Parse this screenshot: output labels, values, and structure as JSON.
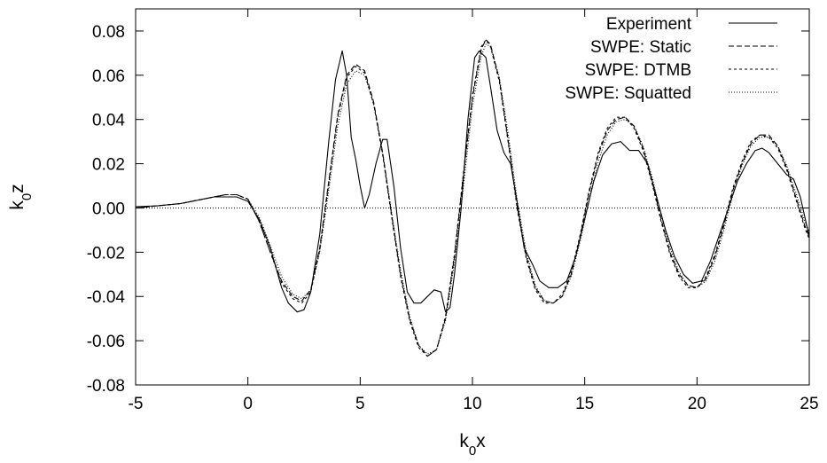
{
  "chart_data": {
    "type": "line",
    "xlabel": "k0x",
    "ylabel": "k0z",
    "xlabel_main": "k",
    "xlabel_sub": "0",
    "xlabel_rest": "x",
    "ylabel_main": "k",
    "ylabel_sub": "0",
    "ylabel_rest": "z",
    "xlim": [
      -5,
      25
    ],
    "ylim": [
      -0.08,
      0.09
    ],
    "xticks": [
      -5,
      0,
      5,
      10,
      15,
      20,
      25
    ],
    "yticks": [
      -0.08,
      -0.06,
      -0.04,
      -0.02,
      0.0,
      0.02,
      0.04,
      0.06,
      0.08
    ],
    "xtick_labels": [
      "-5",
      "0",
      "5",
      "10",
      "15",
      "20",
      "25"
    ],
    "ytick_labels": [
      "-0.08",
      "-0.06",
      "-0.04",
      "-0.02",
      "0.00",
      "0.02",
      "0.04",
      "0.06",
      "0.08"
    ],
    "grid": false,
    "legend_position": "top-right",
    "zero_line": {
      "y": 0,
      "style": "dotted"
    },
    "series": [
      {
        "name": "Experiment",
        "style": "solid",
        "points": [
          [
            -5,
            0.0006
          ],
          [
            -4,
            0.001
          ],
          [
            -3,
            0.002
          ],
          [
            -2.5,
            0.003
          ],
          [
            -2,
            0.004
          ],
          [
            -1.5,
            0.005
          ],
          [
            -1,
            0.005
          ],
          [
            -0.5,
            0.005
          ],
          [
            0,
            0.003
          ],
          [
            0.5,
            -0.005
          ],
          [
            1,
            -0.018
          ],
          [
            1.5,
            -0.036
          ],
          [
            1.8,
            -0.043
          ],
          [
            2.2,
            -0.047
          ],
          [
            2.5,
            -0.046
          ],
          [
            2.8,
            -0.038
          ],
          [
            3.2,
            -0.012
          ],
          [
            3.6,
            0.03
          ],
          [
            3.9,
            0.058
          ],
          [
            4.2,
            0.071
          ],
          [
            4.4,
            0.06
          ],
          [
            4.6,
            0.032
          ],
          [
            4.8,
            0.022
          ],
          [
            5.0,
            0.01
          ],
          [
            5.2,
            0.0
          ],
          [
            5.4,
            0.006
          ],
          [
            5.7,
            0.02
          ],
          [
            6.0,
            0.031
          ],
          [
            6.2,
            0.031
          ],
          [
            6.5,
            0.01
          ],
          [
            6.8,
            -0.018
          ],
          [
            7.1,
            -0.038
          ],
          [
            7.4,
            -0.043
          ],
          [
            7.7,
            -0.043
          ],
          [
            8.0,
            -0.04
          ],
          [
            8.3,
            -0.037
          ],
          [
            8.6,
            -0.038
          ],
          [
            8.8,
            -0.047
          ],
          [
            9.0,
            -0.045
          ],
          [
            9.2,
            -0.03
          ],
          [
            9.5,
            0.0
          ],
          [
            9.8,
            0.04
          ],
          [
            10.1,
            0.068
          ],
          [
            10.3,
            0.071
          ],
          [
            10.6,
            0.068
          ],
          [
            10.8,
            0.055
          ],
          [
            11.1,
            0.035
          ],
          [
            11.4,
            0.025
          ],
          [
            11.7,
            0.02
          ],
          [
            12.0,
            0.002
          ],
          [
            12.3,
            -0.018
          ],
          [
            12.7,
            -0.026
          ],
          [
            13.0,
            -0.033
          ],
          [
            13.4,
            -0.036
          ],
          [
            13.8,
            -0.036
          ],
          [
            14.2,
            -0.033
          ],
          [
            14.6,
            -0.022
          ],
          [
            15.0,
            -0.005
          ],
          [
            15.4,
            0.012
          ],
          [
            15.8,
            0.024
          ],
          [
            16.2,
            0.029
          ],
          [
            16.6,
            0.03
          ],
          [
            17.0,
            0.026
          ],
          [
            17.4,
            0.026
          ],
          [
            17.8,
            0.02
          ],
          [
            18.2,
            0.005
          ],
          [
            18.6,
            -0.01
          ],
          [
            19.0,
            -0.022
          ],
          [
            19.4,
            -0.03
          ],
          [
            19.8,
            -0.034
          ],
          [
            20.2,
            -0.033
          ],
          [
            20.6,
            -0.024
          ],
          [
            21.0,
            -0.012
          ],
          [
            21.4,
            0.0
          ],
          [
            21.8,
            0.012
          ],
          [
            22.2,
            0.02
          ],
          [
            22.6,
            0.026
          ],
          [
            22.9,
            0.027
          ],
          [
            23.2,
            0.025
          ],
          [
            23.6,
            0.02
          ],
          [
            24.0,
            0.015
          ],
          [
            24.3,
            0.013
          ],
          [
            24.6,
            0.005
          ],
          [
            25,
            -0.013
          ]
        ]
      },
      {
        "name": "SWPE: Static",
        "style": "dashed",
        "points": [
          [
            -5,
            0.0
          ],
          [
            -4,
            0.001
          ],
          [
            -3,
            0.002
          ],
          [
            -2,
            0.004
          ],
          [
            -1,
            0.006
          ],
          [
            -0.5,
            0.006
          ],
          [
            0,
            0.004
          ],
          [
            0.5,
            -0.006
          ],
          [
            1,
            -0.02
          ],
          [
            1.5,
            -0.033
          ],
          [
            2,
            -0.04
          ],
          [
            2.4,
            -0.042
          ],
          [
            2.8,
            -0.037
          ],
          [
            3.2,
            -0.018
          ],
          [
            3.6,
            0.012
          ],
          [
            4.0,
            0.042
          ],
          [
            4.4,
            0.06
          ],
          [
            4.8,
            0.065
          ],
          [
            5.2,
            0.062
          ],
          [
            5.6,
            0.048
          ],
          [
            6.0,
            0.025
          ],
          [
            6.4,
            -0.003
          ],
          [
            6.8,
            -0.03
          ],
          [
            7.2,
            -0.05
          ],
          [
            7.6,
            -0.062
          ],
          [
            8.0,
            -0.067
          ],
          [
            8.4,
            -0.064
          ],
          [
            8.8,
            -0.05
          ],
          [
            9.2,
            -0.022
          ],
          [
            9.6,
            0.015
          ],
          [
            10.0,
            0.05
          ],
          [
            10.4,
            0.072
          ],
          [
            10.6,
            0.076
          ],
          [
            10.8,
            0.074
          ],
          [
            11.2,
            0.058
          ],
          [
            11.6,
            0.03
          ],
          [
            12.0,
            0.0
          ],
          [
            12.4,
            -0.022
          ],
          [
            12.8,
            -0.036
          ],
          [
            13.2,
            -0.042
          ],
          [
            13.6,
            -0.043
          ],
          [
            14.0,
            -0.04
          ],
          [
            14.4,
            -0.03
          ],
          [
            14.8,
            -0.013
          ],
          [
            15.2,
            0.007
          ],
          [
            15.6,
            0.024
          ],
          [
            16.0,
            0.035
          ],
          [
            16.4,
            0.04
          ],
          [
            16.8,
            0.041
          ],
          [
            17.2,
            0.037
          ],
          [
            17.6,
            0.027
          ],
          [
            18.0,
            0.012
          ],
          [
            18.4,
            -0.005
          ],
          [
            18.8,
            -0.02
          ],
          [
            19.2,
            -0.03
          ],
          [
            19.6,
            -0.035
          ],
          [
            20.0,
            -0.036
          ],
          [
            20.4,
            -0.032
          ],
          [
            20.8,
            -0.022
          ],
          [
            21.2,
            -0.008
          ],
          [
            21.6,
            0.008
          ],
          [
            22.0,
            0.02
          ],
          [
            22.4,
            0.029
          ],
          [
            22.8,
            0.033
          ],
          [
            23.2,
            0.033
          ],
          [
            23.6,
            0.028
          ],
          [
            24.0,
            0.018
          ],
          [
            24.4,
            0.005
          ],
          [
            24.8,
            -0.008
          ],
          [
            25,
            -0.013
          ]
        ]
      },
      {
        "name": "SWPE: DTMB",
        "style": "short-dashed",
        "points": [
          [
            -5,
            0.0
          ],
          [
            -4,
            0.001
          ],
          [
            -3,
            0.002
          ],
          [
            -2,
            0.004
          ],
          [
            -1,
            0.006
          ],
          [
            -0.5,
            0.006
          ],
          [
            0,
            0.004
          ],
          [
            0.5,
            -0.006
          ],
          [
            1,
            -0.02
          ],
          [
            1.5,
            -0.034
          ],
          [
            2,
            -0.041
          ],
          [
            2.4,
            -0.043
          ],
          [
            2.8,
            -0.038
          ],
          [
            3.2,
            -0.019
          ],
          [
            3.6,
            0.011
          ],
          [
            4.0,
            0.041
          ],
          [
            4.4,
            0.059
          ],
          [
            4.8,
            0.064
          ],
          [
            5.2,
            0.061
          ],
          [
            5.6,
            0.047
          ],
          [
            6.0,
            0.024
          ],
          [
            6.4,
            -0.004
          ],
          [
            6.8,
            -0.031
          ],
          [
            7.2,
            -0.051
          ],
          [
            7.6,
            -0.063
          ],
          [
            8.0,
            -0.067
          ],
          [
            8.4,
            -0.064
          ],
          [
            8.8,
            -0.049
          ],
          [
            9.2,
            -0.021
          ],
          [
            9.6,
            0.016
          ],
          [
            10.0,
            0.051
          ],
          [
            10.4,
            0.073
          ],
          [
            10.6,
            0.076
          ],
          [
            10.8,
            0.073
          ],
          [
            11.2,
            0.057
          ],
          [
            11.6,
            0.029
          ],
          [
            12.0,
            -0.001
          ],
          [
            12.4,
            -0.023
          ],
          [
            12.8,
            -0.037
          ],
          [
            13.2,
            -0.043
          ],
          [
            13.6,
            -0.043
          ],
          [
            14.0,
            -0.039
          ],
          [
            14.4,
            -0.029
          ],
          [
            14.8,
            -0.012
          ],
          [
            15.2,
            0.008
          ],
          [
            15.6,
            0.025
          ],
          [
            16.0,
            0.036
          ],
          [
            16.4,
            0.041
          ],
          [
            16.8,
            0.041
          ],
          [
            17.2,
            0.036
          ],
          [
            17.6,
            0.026
          ],
          [
            18.0,
            0.011
          ],
          [
            18.4,
            -0.006
          ],
          [
            18.8,
            -0.021
          ],
          [
            19.2,
            -0.031
          ],
          [
            19.6,
            -0.036
          ],
          [
            20.0,
            -0.036
          ],
          [
            20.4,
            -0.031
          ],
          [
            20.8,
            -0.021
          ],
          [
            21.2,
            -0.007
          ],
          [
            21.6,
            0.009
          ],
          [
            22.0,
            0.021
          ],
          [
            22.4,
            0.03
          ],
          [
            22.8,
            0.033
          ],
          [
            23.2,
            0.032
          ],
          [
            23.6,
            0.027
          ],
          [
            24.0,
            0.017
          ],
          [
            24.4,
            0.004
          ],
          [
            24.8,
            -0.009
          ],
          [
            25,
            -0.014
          ]
        ]
      },
      {
        "name": "SWPE: Squatted",
        "style": "dotted",
        "points": [
          [
            -5,
            0.0
          ],
          [
            -4,
            0.001
          ],
          [
            -3,
            0.002
          ],
          [
            -2,
            0.004
          ],
          [
            -1,
            0.006
          ],
          [
            -0.5,
            0.006
          ],
          [
            0,
            0.004
          ],
          [
            0.5,
            -0.004
          ],
          [
            1,
            -0.017
          ],
          [
            1.5,
            -0.031
          ],
          [
            2,
            -0.039
          ],
          [
            2.4,
            -0.041
          ],
          [
            2.8,
            -0.037
          ],
          [
            3.2,
            -0.02
          ],
          [
            3.6,
            0.008
          ],
          [
            4.0,
            0.037
          ],
          [
            4.4,
            0.056
          ],
          [
            4.8,
            0.062
          ],
          [
            5.2,
            0.06
          ],
          [
            5.6,
            0.047
          ],
          [
            6.0,
            0.025
          ],
          [
            6.4,
            -0.002
          ],
          [
            6.8,
            -0.028
          ],
          [
            7.2,
            -0.049
          ],
          [
            7.6,
            -0.062
          ],
          [
            8.0,
            -0.066
          ],
          [
            8.4,
            -0.064
          ],
          [
            8.8,
            -0.051
          ],
          [
            9.2,
            -0.025
          ],
          [
            9.6,
            0.01
          ],
          [
            10.0,
            0.046
          ],
          [
            10.4,
            0.069
          ],
          [
            10.6,
            0.074
          ],
          [
            10.8,
            0.073
          ],
          [
            11.2,
            0.059
          ],
          [
            11.6,
            0.033
          ],
          [
            12.0,
            0.003
          ],
          [
            12.4,
            -0.02
          ],
          [
            12.8,
            -0.035
          ],
          [
            13.2,
            -0.042
          ],
          [
            13.6,
            -0.043
          ],
          [
            14.0,
            -0.04
          ],
          [
            14.4,
            -0.031
          ],
          [
            14.8,
            -0.015
          ],
          [
            15.2,
            0.004
          ],
          [
            15.6,
            0.021
          ],
          [
            16.0,
            0.033
          ],
          [
            16.4,
            0.039
          ],
          [
            16.8,
            0.04
          ],
          [
            17.2,
            0.037
          ],
          [
            17.6,
            0.028
          ],
          [
            18.0,
            0.014
          ],
          [
            18.4,
            -0.003
          ],
          [
            18.8,
            -0.018
          ],
          [
            19.2,
            -0.029
          ],
          [
            19.6,
            -0.035
          ],
          [
            20.0,
            -0.036
          ],
          [
            20.4,
            -0.033
          ],
          [
            20.8,
            -0.024
          ],
          [
            21.2,
            -0.01
          ],
          [
            21.6,
            0.006
          ],
          [
            22.0,
            0.019
          ],
          [
            22.4,
            0.028
          ],
          [
            22.8,
            0.032
          ],
          [
            23.2,
            0.032
          ],
          [
            23.6,
            0.028
          ],
          [
            24.0,
            0.019
          ],
          [
            24.4,
            0.007
          ],
          [
            24.8,
            -0.006
          ],
          [
            25,
            -0.011
          ]
        ]
      }
    ]
  }
}
